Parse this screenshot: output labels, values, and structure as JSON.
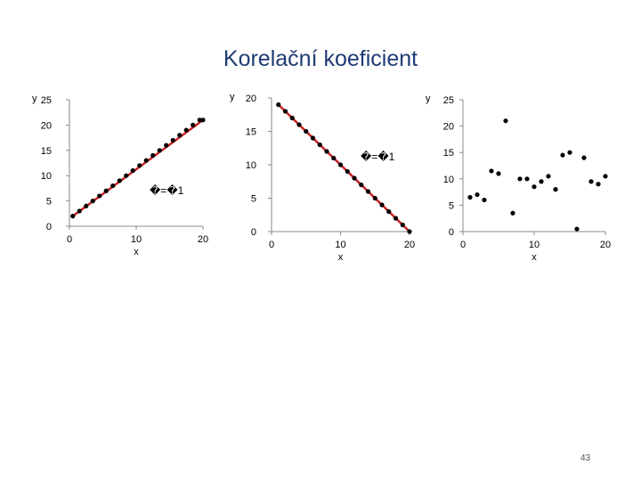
{
  "slide": {
    "title": "Korelační koeficient",
    "page_number": "43"
  },
  "chart_data": [
    {
      "type": "scatter",
      "xlabel": "x",
      "ylabel": "y",
      "xlim": [
        0,
        20
      ],
      "ylim": [
        0,
        25
      ],
      "xticks": [
        "0",
        "10",
        "20"
      ],
      "yticks": [
        "0",
        "5",
        "10",
        "15",
        "20",
        "25"
      ],
      "annotation": "�=�1",
      "trendline": {
        "from": [
          0.5,
          2
        ],
        "to": [
          20,
          21
        ],
        "color": "#cc2222"
      },
      "series": [
        {
          "values": [
            [
              0.5,
              2
            ],
            [
              1.5,
              3
            ],
            [
              2.5,
              4
            ],
            [
              3.5,
              5
            ],
            [
              4.5,
              6
            ],
            [
              5.5,
              7
            ],
            [
              6.5,
              8
            ],
            [
              7.5,
              9
            ],
            [
              8.5,
              10
            ],
            [
              9.5,
              11
            ],
            [
              10.5,
              12
            ],
            [
              11.5,
              13
            ],
            [
              12.5,
              14
            ],
            [
              13.5,
              15
            ],
            [
              14.5,
              16
            ],
            [
              15.5,
              17
            ],
            [
              16.5,
              18
            ],
            [
              17.5,
              19
            ],
            [
              18.5,
              20
            ],
            [
              19.5,
              21
            ],
            [
              20,
              21
            ]
          ]
        }
      ]
    },
    {
      "type": "scatter",
      "xlabel": "x",
      "ylabel": "y",
      "xlim": [
        0,
        20
      ],
      "ylim": [
        0,
        20
      ],
      "xticks": [
        "0",
        "10",
        "20"
      ],
      "yticks": [
        "0",
        "5",
        "10",
        "15",
        "20"
      ],
      "annotation": "�=�1",
      "trendline": {
        "from": [
          1,
          19
        ],
        "to": [
          20,
          0
        ],
        "color": "#cc2222"
      },
      "series": [
        {
          "values": [
            [
              1,
              19
            ],
            [
              2,
              18
            ],
            [
              3,
              17
            ],
            [
              4,
              16
            ],
            [
              5,
              15
            ],
            [
              6,
              14
            ],
            [
              7,
              13
            ],
            [
              8,
              12
            ],
            [
              9,
              11
            ],
            [
              10,
              10
            ],
            [
              11,
              9
            ],
            [
              12,
              8
            ],
            [
              13,
              7
            ],
            [
              14,
              6
            ],
            [
              15,
              5
            ],
            [
              16,
              4
            ],
            [
              17,
              3
            ],
            [
              18,
              2
            ],
            [
              19,
              1
            ],
            [
              20,
              0
            ]
          ]
        }
      ]
    },
    {
      "type": "scatter",
      "xlabel": "x",
      "ylabel": "y",
      "xlim": [
        0,
        20
      ],
      "ylim": [
        0,
        25
      ],
      "xticks": [
        "0",
        "10",
        "20"
      ],
      "yticks": [
        "0",
        "5",
        "10",
        "15",
        "20",
        "25"
      ],
      "series": [
        {
          "values": [
            [
              1,
              6.5
            ],
            [
              2,
              7
            ],
            [
              3,
              6
            ],
            [
              4,
              11.5
            ],
            [
              5,
              11
            ],
            [
              6,
              21
            ],
            [
              7,
              3.5
            ],
            [
              8,
              10
            ],
            [
              9,
              10
            ],
            [
              10,
              8.5
            ],
            [
              11,
              9.5
            ],
            [
              12,
              10.5
            ],
            [
              13,
              8
            ],
            [
              14,
              14.5
            ],
            [
              15,
              15
            ],
            [
              16,
              0.5
            ],
            [
              17,
              14
            ],
            [
              18,
              9.5
            ],
            [
              19,
              9
            ],
            [
              20,
              10.5
            ]
          ]
        }
      ]
    }
  ]
}
